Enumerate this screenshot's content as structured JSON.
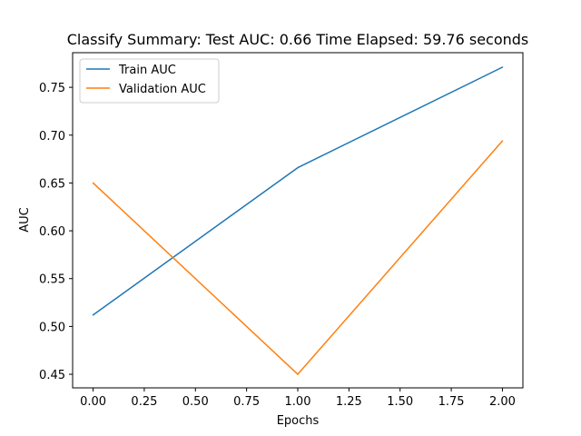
{
  "chart_data": {
    "type": "line",
    "title": "Classify Summary: Test AUC: 0.66 Time Elapsed: 59.76 seconds",
    "xlabel": "Epochs",
    "ylabel": "AUC",
    "x": [
      0,
      1,
      2
    ],
    "xlim": [
      -0.1,
      2.1
    ],
    "ylim": [
      0.4358,
      0.7862
    ],
    "xticks": [
      0.0,
      0.25,
      0.5,
      0.75,
      1.0,
      1.25,
      1.5,
      1.75,
      2.0
    ],
    "xtick_labels": [
      "0.00",
      "0.25",
      "0.50",
      "0.75",
      "1.00",
      "1.25",
      "1.50",
      "1.75",
      "2.00"
    ],
    "yticks": [
      0.45,
      0.5,
      0.55,
      0.6,
      0.65,
      0.7,
      0.75
    ],
    "ytick_labels": [
      "0.45",
      "0.50",
      "0.55",
      "0.60",
      "0.65",
      "0.70",
      "0.75"
    ],
    "grid": false,
    "legend_position": "top-left",
    "series": [
      {
        "name": "Train AUC",
        "color": "#1f77b4",
        "values": [
          0.512,
          0.666,
          0.771
        ]
      },
      {
        "name": "Validation AUC",
        "color": "#ff7f0e",
        "values": [
          0.65,
          0.45,
          0.694
        ]
      }
    ]
  }
}
